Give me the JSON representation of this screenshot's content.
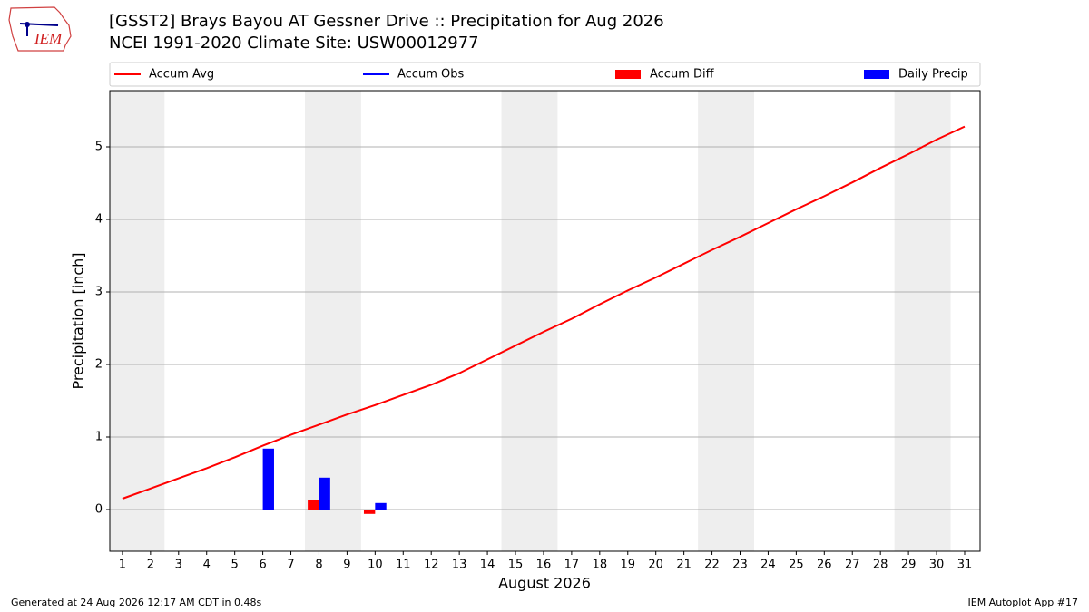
{
  "logo": "IEM",
  "footer_left": "Generated at 24 Aug 2026 12:17 AM CDT in 0.48s",
  "footer_right": "IEM Autoplot App #17",
  "chart_data": {
    "type": "line_bar",
    "title": "[GSST2] Brays Bayou  AT Gessner Drive :: Precipitation for Aug 2026",
    "subtitle": "NCEI 1991-2020 Climate Site: USW00012977",
    "xlabel": "August 2026",
    "ylabel": "Precipitation [inch]",
    "x": [
      1,
      2,
      3,
      4,
      5,
      6,
      7,
      8,
      9,
      10,
      11,
      12,
      13,
      14,
      15,
      16,
      17,
      18,
      19,
      20,
      21,
      22,
      23,
      24,
      25,
      26,
      27,
      28,
      29,
      30,
      31
    ],
    "series": [
      {
        "name": "Accum Avg",
        "color": "#ff0000",
        "kind": "line",
        "values": [
          0.15,
          0.29,
          0.43,
          0.57,
          0.72,
          0.88,
          1.03,
          1.17,
          1.31,
          1.44,
          1.58,
          1.72,
          1.88,
          2.07,
          2.26,
          2.45,
          2.63,
          2.83,
          3.02,
          3.2,
          3.39,
          3.58,
          3.76,
          3.95,
          4.14,
          4.32,
          4.51,
          4.71,
          4.9,
          5.1,
          5.28
        ]
      },
      {
        "name": "Accum Obs",
        "color": "#0000ff",
        "kind": "line",
        "values": [
          null,
          null,
          null,
          null,
          null,
          null,
          null,
          null,
          null,
          null,
          null,
          null,
          null,
          null,
          null,
          null,
          null,
          null,
          null,
          null,
          null,
          null,
          null,
          null,
          null,
          null,
          null,
          null,
          null,
          null,
          null
        ]
      },
      {
        "name": "Accum Diff",
        "color": "#ff0000",
        "kind": "bar",
        "offset": -0.4,
        "values": [
          null,
          null,
          null,
          null,
          null,
          -0.01,
          null,
          0.13,
          null,
          -0.06,
          null,
          null,
          null,
          null,
          null,
          null,
          null,
          null,
          null,
          null,
          null,
          null,
          null,
          null,
          null,
          null,
          null,
          null,
          null,
          null,
          null
        ]
      },
      {
        "name": "Daily Precip",
        "color": "#0000ff",
        "kind": "bar",
        "offset": 0,
        "values": [
          null,
          null,
          null,
          null,
          null,
          0.84,
          null,
          0.44,
          null,
          0.09,
          null,
          null,
          null,
          null,
          null,
          null,
          null,
          null,
          null,
          null,
          null,
          null,
          null,
          null,
          null,
          null,
          null,
          null,
          null,
          null,
          null
        ]
      }
    ],
    "bar_width": 0.4,
    "weekend_bands": [
      [
        0.5,
        2.5
      ],
      [
        7.5,
        9.5
      ],
      [
        14.5,
        16.5
      ],
      [
        21.5,
        23.5
      ],
      [
        28.5,
        30.5
      ]
    ],
    "xlim": [
      0.55,
      31.55
    ],
    "xticks": [
      1,
      2,
      3,
      4,
      5,
      6,
      7,
      8,
      9,
      10,
      11,
      12,
      13,
      14,
      15,
      16,
      17,
      18,
      19,
      20,
      21,
      22,
      23,
      24,
      25,
      26,
      27,
      28,
      29,
      30,
      31
    ],
    "ylim": [
      -0.575,
      5.775
    ],
    "yticks": [
      0,
      1,
      2,
      3,
      4,
      5
    ],
    "grid": true,
    "legend": "top"
  }
}
